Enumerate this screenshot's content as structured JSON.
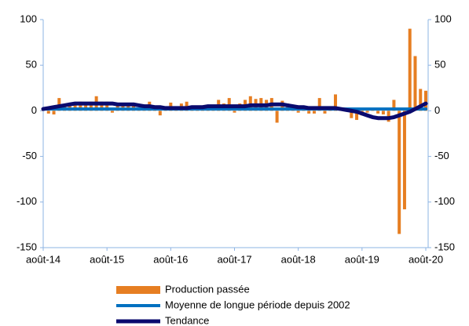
{
  "chart_data": {
    "type": "bar",
    "categories": [
      "août-14",
      null,
      null,
      null,
      null,
      null,
      null,
      null,
      null,
      null,
      null,
      null,
      "août-15",
      null,
      null,
      null,
      null,
      null,
      null,
      null,
      null,
      null,
      null,
      null,
      "août-16",
      null,
      null,
      null,
      null,
      null,
      null,
      null,
      null,
      null,
      null,
      null,
      "août-17",
      null,
      null,
      null,
      null,
      null,
      null,
      null,
      null,
      null,
      null,
      null,
      "août-18",
      null,
      null,
      null,
      null,
      null,
      null,
      null,
      null,
      null,
      null,
      null,
      "août-19",
      null,
      null,
      null,
      null,
      null,
      null,
      null,
      null,
      null,
      null,
      null,
      "août-20"
    ],
    "series": [
      {
        "name": "Production passée",
        "type": "bar",
        "color": "#e67e22",
        "values": [
          2,
          -3,
          -4,
          14,
          5,
          5,
          8,
          10,
          8,
          10,
          16,
          10,
          10,
          -2,
          8,
          6,
          8,
          8,
          3,
          5,
          10,
          5,
          -5,
          2,
          9,
          2,
          8,
          10,
          3,
          5,
          5,
          6,
          3,
          12,
          8,
          14,
          -2,
          8,
          12,
          16,
          13,
          14,
          12,
          14,
          -13,
          11,
          8,
          3,
          -2,
          3,
          -3,
          -3,
          14,
          -3,
          2,
          18,
          3,
          3,
          -8,
          -10,
          -5,
          -2,
          2,
          -3,
          -4,
          -12,
          12,
          -135,
          -108,
          90,
          60,
          24,
          22
        ]
      },
      {
        "name": "Moyenne de longue période depuis 2002",
        "type": "line",
        "color": "#0070c0",
        "values": [
          2,
          2,
          2,
          2,
          2,
          2,
          2,
          2,
          2,
          2,
          2,
          2,
          2,
          2,
          2,
          2,
          2,
          2,
          2,
          2,
          2,
          2,
          2,
          2,
          2,
          2,
          2,
          2,
          2,
          2,
          2,
          2,
          2,
          2,
          2,
          2,
          2,
          2,
          2,
          2,
          2,
          2,
          2,
          2,
          2,
          2,
          2,
          2,
          2,
          2,
          2,
          2,
          2,
          2,
          2,
          2,
          2,
          2,
          2,
          2,
          2,
          2,
          2,
          2,
          2,
          2,
          2,
          2,
          2,
          2,
          2,
          2,
          2
        ]
      },
      {
        "name": "Tendance",
        "type": "line",
        "color": "#0a0a6e",
        "values": [
          2,
          3,
          4,
          5,
          6,
          7,
          8,
          8,
          8,
          8,
          8,
          8,
          8,
          8,
          7,
          7,
          7,
          7,
          6,
          5,
          5,
          4,
          4,
          3,
          3,
          3,
          3,
          3,
          4,
          4,
          4,
          5,
          5,
          5,
          5,
          5,
          5,
          5,
          5,
          6,
          6,
          6,
          6,
          7,
          7,
          7,
          6,
          5,
          4,
          4,
          3,
          3,
          3,
          3,
          3,
          3,
          2,
          1,
          0,
          -1,
          -3,
          -5,
          -7,
          -8,
          -8,
          -8,
          -7,
          -5,
          -3,
          -1,
          2,
          5,
          8
        ]
      }
    ],
    "ylim": [
      -150,
      100
    ],
    "yticks": [
      -150,
      -100,
      -50,
      0,
      50,
      100
    ],
    "y2lim": [
      -150,
      100
    ],
    "y2ticks": [
      -150,
      -100,
      -50,
      0,
      50,
      100
    ]
  }
}
